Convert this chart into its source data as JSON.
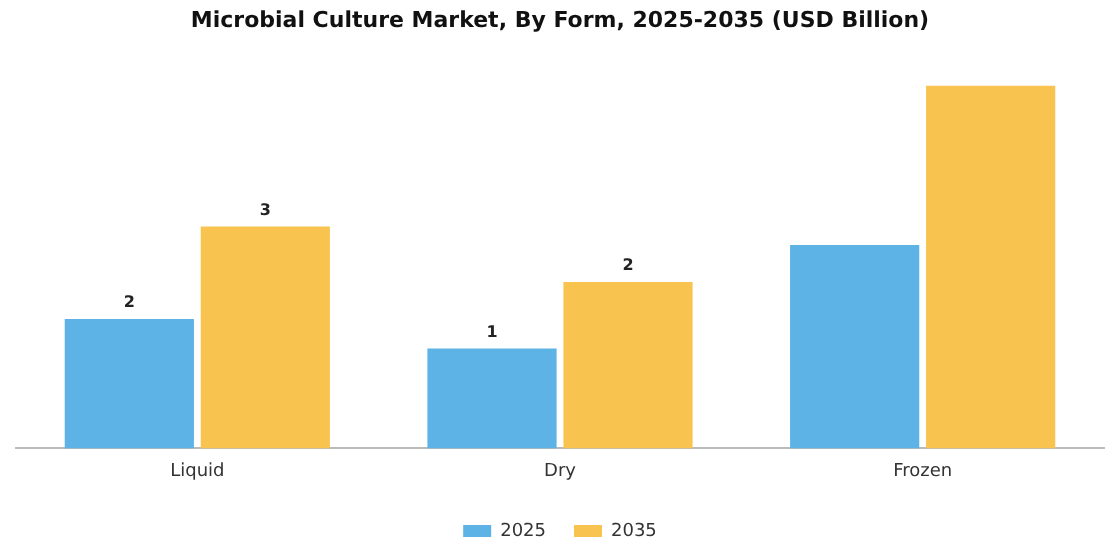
{
  "chart_data": {
    "type": "bar",
    "title": "Microbial Culture Market, By Form, 2025-2035 (USD Billion)",
    "categories": [
      "Liquid",
      "Dry",
      "Frozen"
    ],
    "series": [
      {
        "name": "2025",
        "color": "#5db3e5",
        "values": [
          1.75,
          1.35,
          2.75
        ],
        "value_labels": [
          "2",
          "1",
          null
        ]
      },
      {
        "name": "2035",
        "color": "#f8c44f",
        "values": [
          3.0,
          2.25,
          4.9
        ],
        "value_labels": [
          "3",
          "2",
          null
        ]
      }
    ],
    "grid": false,
    "legend": "bottom"
  }
}
